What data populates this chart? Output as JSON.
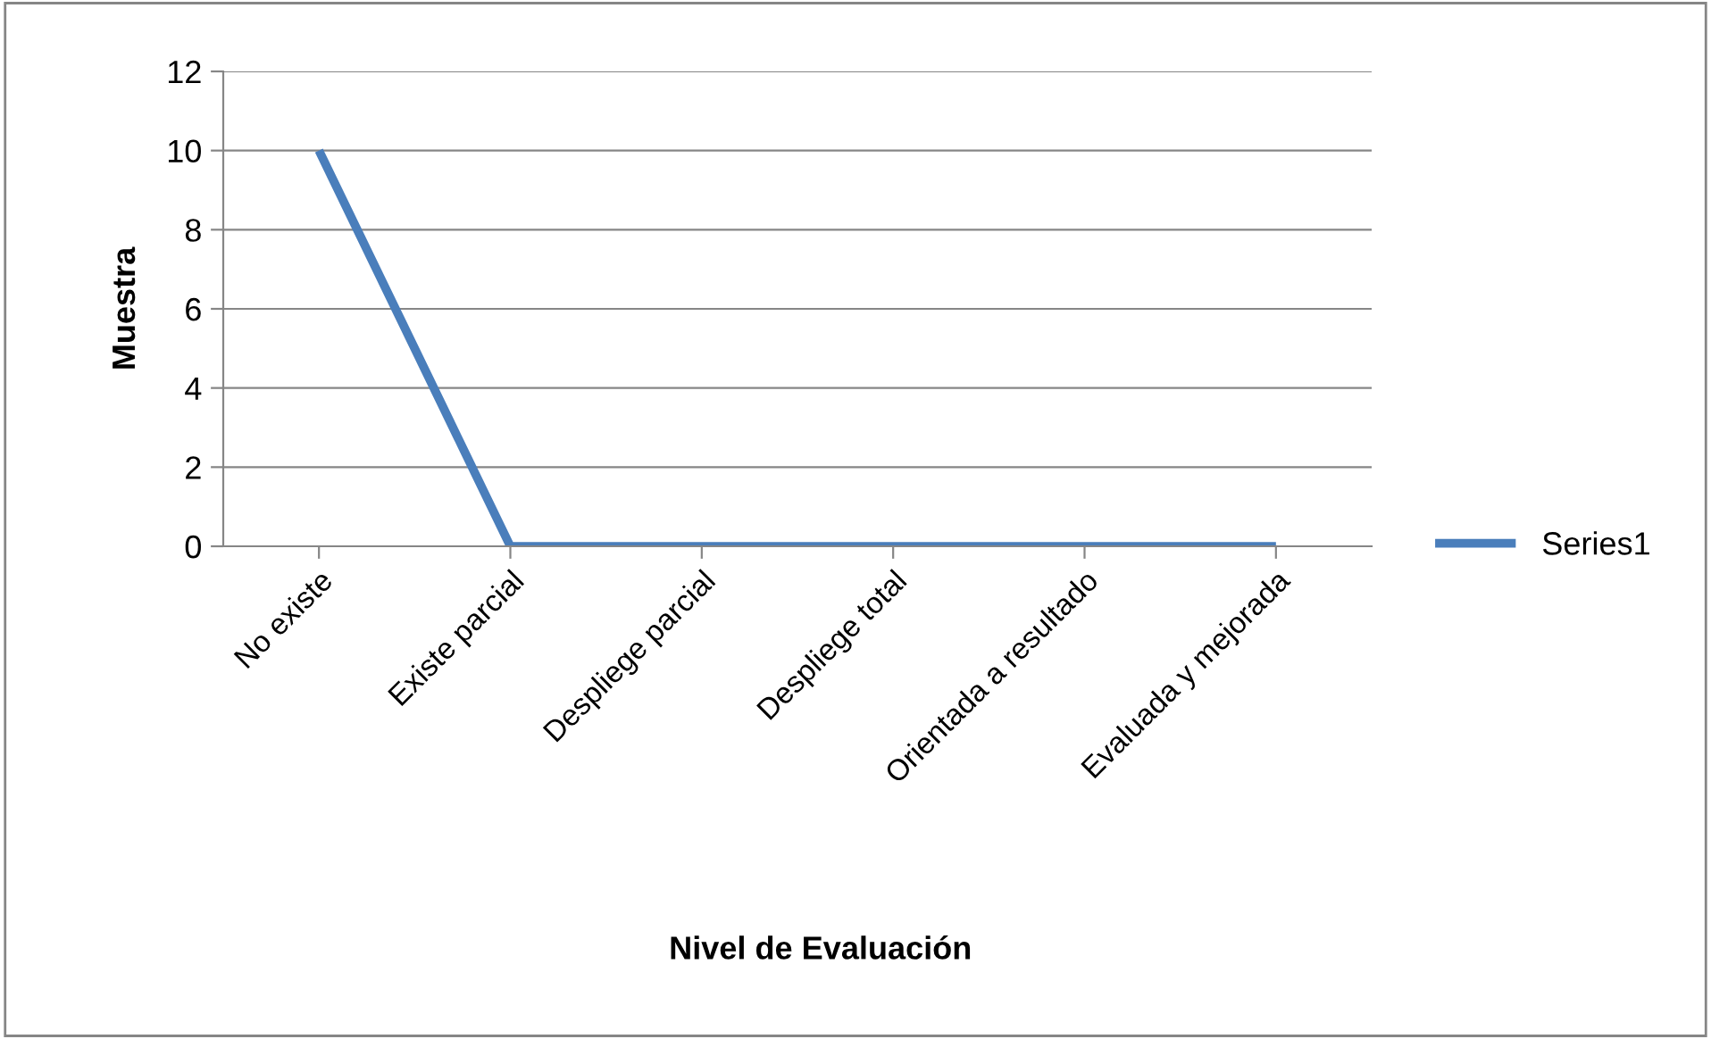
{
  "chart_data": {
    "type": "line",
    "xlabel": "Nivel de Evaluación",
    "ylabel": "Muestra",
    "categories": [
      "No existe",
      "Existe parcial",
      "Despliege parcial",
      "Despliege total",
      "Orientada a resultado",
      "Evaluada y mejorada"
    ],
    "series": [
      {
        "name": "Series1",
        "color": "#4a7ebb",
        "values": [
          10,
          0,
          0,
          0,
          0,
          0
        ]
      }
    ],
    "ylim": [
      0,
      12
    ],
    "yticks": [
      0,
      2,
      4,
      6,
      8,
      10,
      12
    ],
    "grid": "y",
    "legend": "right",
    "marker": "none",
    "line_style": "solid"
  }
}
